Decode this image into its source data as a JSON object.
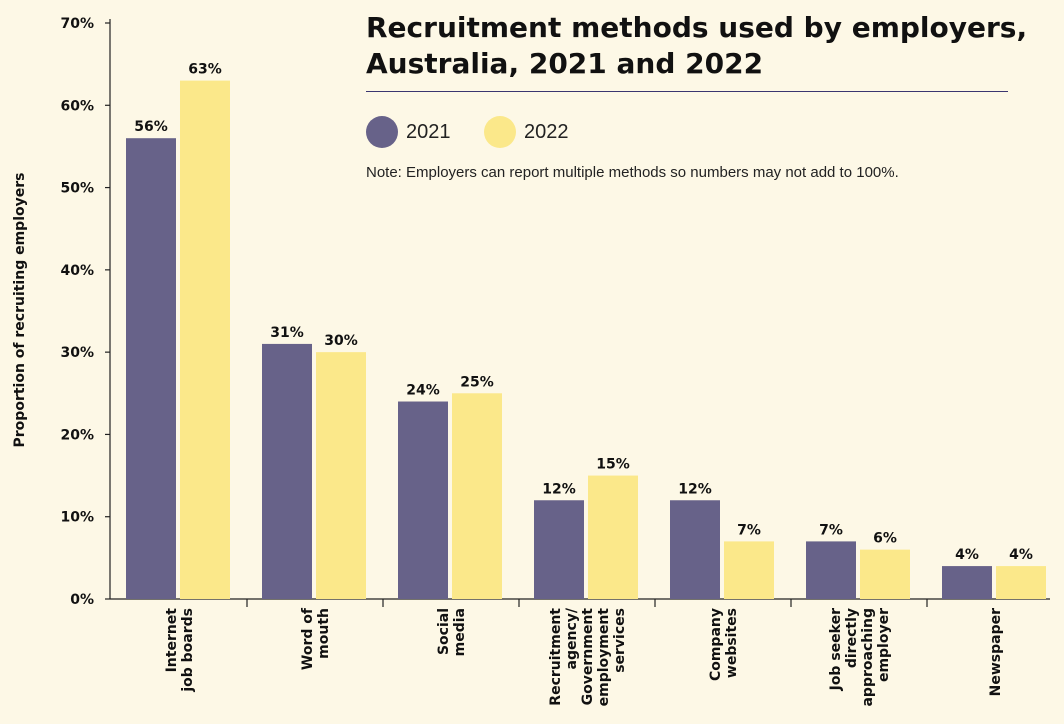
{
  "chart_data": {
    "type": "bar",
    "title_line1": "Recruitment methods used by employers,",
    "title_line2": "Australia, 2021 and 2022",
    "ylabel": "Proportion of recruiting employers",
    "xlabel": "",
    "ylim": [
      0,
      70
    ],
    "yticks": [
      "0%",
      "10%",
      "20%",
      "30%",
      "40%",
      "50%",
      "60%",
      "70%"
    ],
    "note": "Note: Employers can report multiple methods so numbers may not add to 100%.",
    "legend_position": "top",
    "grid": false,
    "categories": [
      [
        "Internet",
        "job boards"
      ],
      [
        "Word of",
        "mouth"
      ],
      [
        "Social",
        "media"
      ],
      [
        "Recruitment",
        "agency/",
        "Government",
        "employment",
        "services"
      ],
      [
        "Company",
        "websites"
      ],
      [
        "Job seeker",
        "directly",
        "approaching",
        "employer"
      ],
      [
        "Newspaper"
      ]
    ],
    "series": [
      {
        "name": "2021",
        "color": "#676289",
        "values": [
          56,
          31,
          24,
          12,
          12,
          7,
          4
        ],
        "labels": [
          "56%",
          "31%",
          "24%",
          "12%",
          "12%",
          "7%",
          "4%"
        ]
      },
      {
        "name": "2022",
        "color": "#fbe88a",
        "values": [
          63,
          30,
          25,
          15,
          7,
          6,
          4
        ],
        "labels": [
          "63%",
          "30%",
          "25%",
          "15%",
          "7%",
          "6%",
          "4%"
        ]
      }
    ]
  },
  "colors": {
    "background": "#fdf8e6",
    "axis": "#222222",
    "title_rule": "#3b3670"
  }
}
